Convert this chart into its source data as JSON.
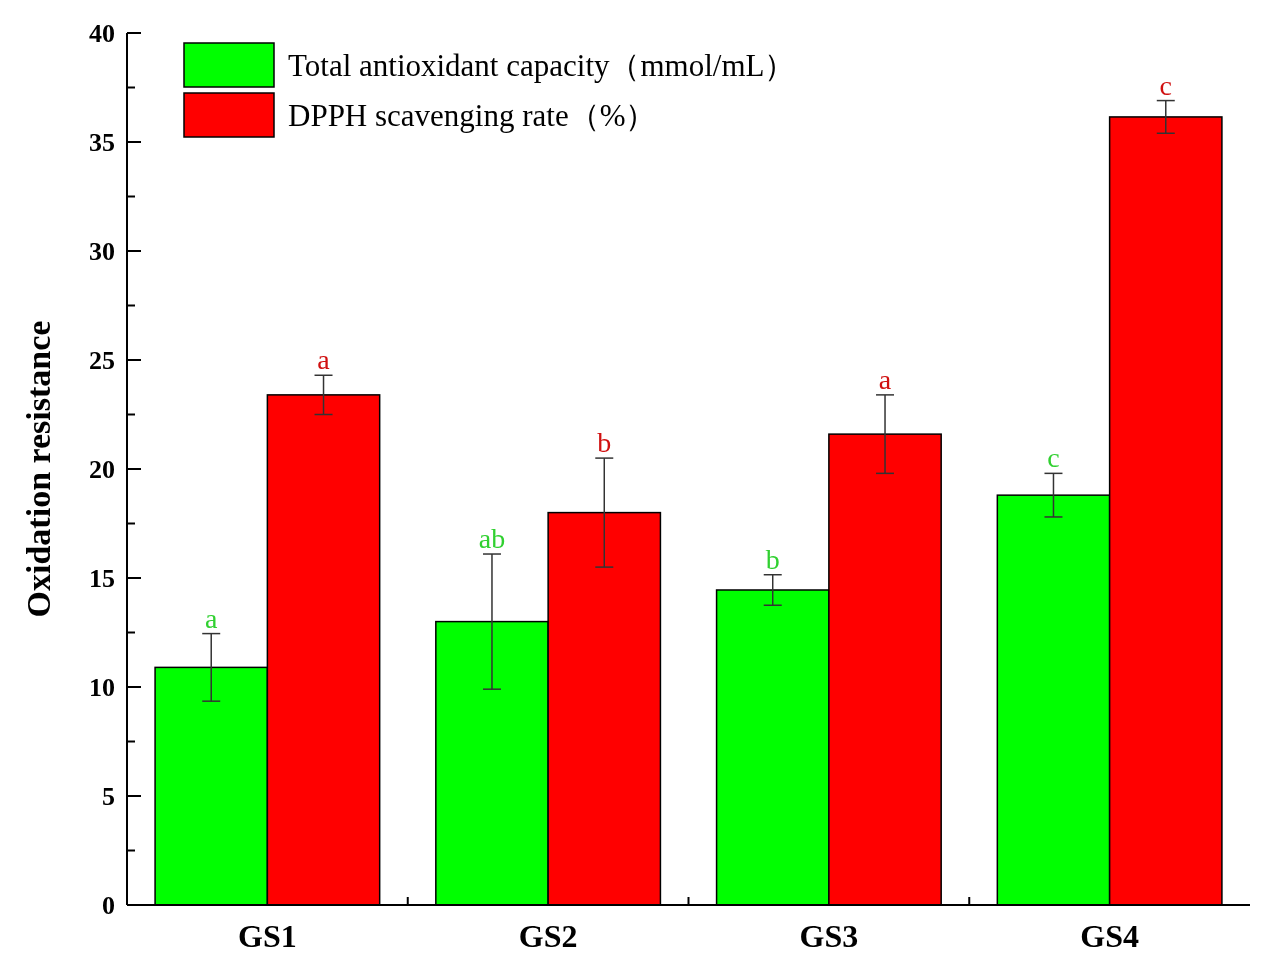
{
  "chart_data": {
    "type": "bar",
    "ylabel": "Oxidation resistance",
    "categories": [
      "GS1",
      "GS2",
      "GS3",
      "GS4"
    ],
    "series": [
      {
        "name": "Total antioxidant capacity（mmol/mL）",
        "color": "#00ff00",
        "values": [
          10.9,
          13.0,
          14.45,
          18.8
        ],
        "errors": [
          1.55,
          3.1,
          0.7,
          1.0
        ]
      },
      {
        "name": "DPPH scavenging rate（%）",
        "color": "#ff0000",
        "values": [
          23.4,
          18.0,
          21.6,
          36.15
        ],
        "errors": [
          0.9,
          2.5,
          1.8,
          0.75
        ]
      }
    ],
    "ylim": [
      0,
      40
    ],
    "yticks": [
      0,
      {
        "value": 2.5,
        "label": null
      },
      5,
      {
        "value": 7.5,
        "label": null
      },
      10,
      {
        "value": 12.5,
        "label": null
      },
      15,
      {
        "value": 17.5,
        "label": null
      },
      20,
      {
        "value": 22.5,
        "label": null
      },
      25,
      {
        "value": 27.5,
        "label": null
      },
      30,
      {
        "value": 32.5,
        "label": null
      },
      35,
      {
        "value": 37.5,
        "label": null
      },
      40
    ],
    "annotations": [
      {
        "text": "a",
        "x": "GS1",
        "y": 10.9
      },
      {
        "text": "ab",
        "x": "GS2",
        "y": 13.0
      },
      {
        "text": "b",
        "x": "GS3",
        "y": 14.45
      },
      {
        "text": "c",
        "x": "GS4",
        "y": 18.8
      },
      {
        "text": "a",
        "x": "GS1",
        "y": 23.4
      },
      {
        "text": "b",
        "x": "GS2",
        "y": 18.0
      },
      {
        "text": "a",
        "x": "GS3",
        "y": 21.6
      },
      {
        "text": "c",
        "x": "GS4",
        "y": 36.15
      }
    ],
    "legend": "top left"
  }
}
